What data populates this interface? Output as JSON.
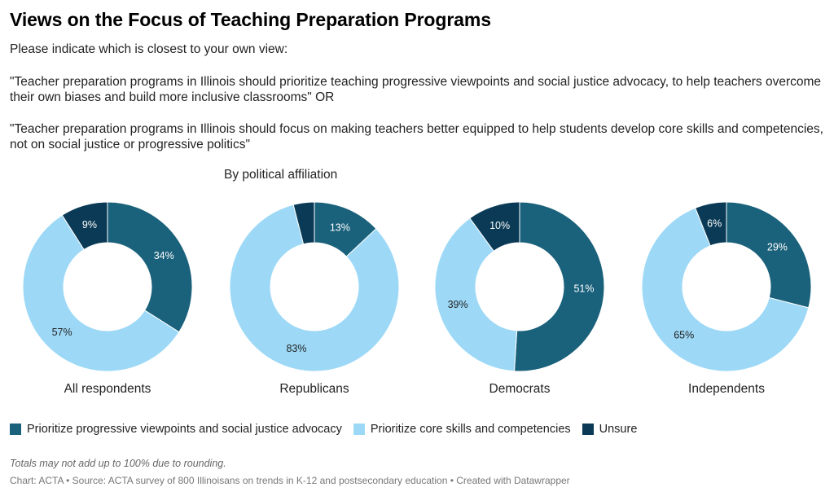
{
  "header": {
    "title": "Views on the Focus of Teaching Preparation Programs",
    "intro": "Please indicate which is closest to your own view:",
    "statement_1": "\"Teacher preparation programs in Illinois should prioritize teaching progressive viewpoints and social justice advocacy, to help teachers overcome their own biases and build more inclusive classrooms\" OR",
    "statement_2": "\"Teacher preparation programs in Illinois should focus on making teachers better equipped to help students develop core skills and competencies, not on social justice or progressive politics\"",
    "subtitle": "By political affiliation"
  },
  "colors": {
    "progressive": "#1a617b",
    "core_skills": "#9dd9f7",
    "unsure": "#0a3a55"
  },
  "chart_data": {
    "type": "pie",
    "subtitle": "By political affiliation",
    "series": [
      {
        "name": "Prioritize progressive viewpoints and social justice advocacy",
        "color": "#1a617b"
      },
      {
        "name": "Prioritize core skills and competencies",
        "color": "#9dd9f7"
      },
      {
        "name": "Unsure",
        "color": "#0a3a55"
      }
    ],
    "charts": [
      {
        "label": "All respondents",
        "values": [
          34,
          57,
          9
        ]
      },
      {
        "label": "Republicans",
        "values": [
          13,
          83,
          4
        ]
      },
      {
        "label": "Democrats",
        "values": [
          51,
          39,
          10
        ]
      },
      {
        "label": "Independents",
        "values": [
          29,
          65,
          6
        ]
      }
    ],
    "min_label_value": 5
  },
  "legend": {
    "items": [
      {
        "label": "Prioritize progressive viewpoints and social justice advocacy",
        "color": "#1a617b"
      },
      {
        "label": "Prioritize core skills and competencies",
        "color": "#9dd9f7"
      },
      {
        "label": "Unsure",
        "color": "#0a3a55"
      }
    ]
  },
  "notes": "Totals may not add up to 100% due to rounding.",
  "footer": "Chart: ACTA • Source: ACTA survey of 800 Illinoisans on trends in K-12 and postsecondary education • Created with Datawrapper"
}
